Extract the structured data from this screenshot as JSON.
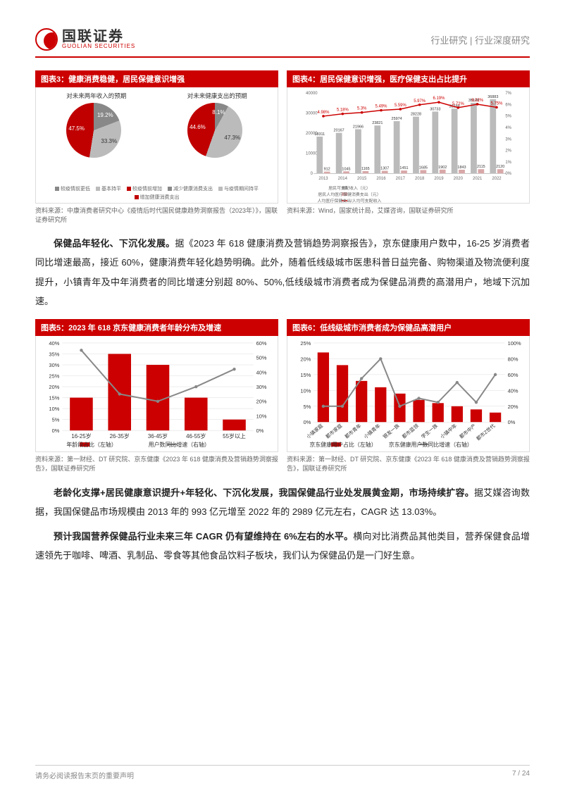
{
  "header": {
    "logo_cn": "国联证券",
    "logo_en": "GUOLIAN SECURITIES",
    "category": "行业研究 | 行业深度研究"
  },
  "fig3": {
    "title": "图表3：健康消费稳健，居民保健意识增强",
    "pie1": {
      "label": "对未来两年收入的预期",
      "slices": [
        {
          "color": "#888888",
          "pct": 19.2,
          "label": "19.2%"
        },
        {
          "color": "#bbbbbb",
          "pct": 33.3,
          "label": "33.3%"
        },
        {
          "color": "#c00000",
          "pct": 47.5,
          "label": "47.5%"
        }
      ]
    },
    "pie2": {
      "label": "对未来健康支出的预期",
      "slices": [
        {
          "color": "#888888",
          "pct": 8.1,
          "label": "8.1%"
        },
        {
          "color": "#bbbbbb",
          "pct": 47.3,
          "label": "47.3%"
        },
        {
          "color": "#c00000",
          "pct": 44.6,
          "label": "44.6%"
        }
      ]
    },
    "legend": [
      {
        "color": "#888888",
        "text": "较疫情前更低"
      },
      {
        "color": "#bbbbbb",
        "text": "基本持平"
      },
      {
        "color": "#c00000",
        "text": "较疫情前增加"
      },
      {
        "color": "#888888",
        "text": "减少健康消费支出"
      },
      {
        "color": "#bbbbbb",
        "text": "与疫情期间持平"
      },
      {
        "color": "#c00000",
        "text": "增加健康消费支出"
      }
    ],
    "source": "资料来源：中康消费者研究中心《疫情后时代国民健康趋势洞察报告（2023年）》，国联证券研究所"
  },
  "fig4": {
    "title": "图表4：居民保健意识增强，医疗保健支出占比提升",
    "years": [
      "2013",
      "2014",
      "2015",
      "2016",
      "2017",
      "2018",
      "2019",
      "2020",
      "2021",
      "2022"
    ],
    "bar1": [
      18311,
      20167,
      21966,
      23821,
      25974,
      28228,
      30733,
      32189,
      35128,
      36883
    ],
    "bar2": [
      912,
      1045,
      1165,
      1307,
      1451,
      1685,
      1902,
      1843,
      2115,
      2120
    ],
    "line_pct": [
      4.98,
      5.18,
      5.3,
      5.49,
      5.59,
      5.97,
      6.19,
      5.72,
      6.02,
      5.75
    ],
    "y1_max": 40000,
    "y1_step": 10000,
    "y2_max": 7,
    "y2_step": 1,
    "bar1_color": "#bbbbbb",
    "bar2_color": "#d8a8a8",
    "line_color": "#c00000",
    "legend": [
      {
        "type": "box",
        "color": "#bbbbbb",
        "text": "居民可支配收入（元）"
      },
      {
        "type": "box",
        "color": "#d8a8a8",
        "text": "居民人均医疗保健消费支出（元）"
      },
      {
        "type": "line",
        "color": "#c00000",
        "text": "人均医疗保健支出/人均可支配收入"
      }
    ],
    "source": "资料来源：Wind，国家统计局，艾媒咨询，国联证券研究所"
  },
  "para1": {
    "lead": "保健品年轻化、下沉化发展。",
    "text": "据《2023 年 618 健康消费及营销趋势洞察报告》，京东健康用户数中，16-25 岁消费者同比增速最高，接近 60%，健康消费年轻化趋势明确。此外，随着低线级城市医患科普日益完备、购物渠道及物流便利度提升，小镇青年及中年消费者的同比增速分别超 80%、50%,低线级城市消费者成为保健品消费的高潜用户，地域下沉加速。"
  },
  "fig5": {
    "title": "图表5：2023 年 618 京东健康消费者年龄分布及增速",
    "categories": [
      "16-25岁",
      "26-35岁",
      "36-45岁",
      "46-55岁",
      "55岁以上"
    ],
    "bar_values": [
      15,
      35,
      30,
      15,
      5
    ],
    "line_values": [
      55,
      25,
      20,
      30,
      42
    ],
    "y1_max": 40,
    "y1_step": 5,
    "y2_max": 60,
    "y2_step": 10,
    "bar_color": "#c00000",
    "line_color": "#888888",
    "legend": [
      {
        "type": "box",
        "color": "#c00000",
        "text": "年龄段占比（左轴）"
      },
      {
        "type": "line",
        "color": "#888888",
        "text": "用户数同比增速（右轴）"
      }
    ],
    "source": "资料来源：第一财经、DT 研究院、京东健康《2023 年 618 健康消费及营销趋势洞察报告》，国联证券研究所"
  },
  "fig6": {
    "title": "图表6：低线级城市消费者成为保健品高潜用户",
    "categories": [
      "小镇家庭",
      "都市家庭",
      "都市青年",
      "小镇青年",
      "银发一族",
      "都市蓝领",
      "学生一族",
      "小镇中年",
      "都市中产",
      "都市Z世代"
    ],
    "bar_values": [
      22,
      18,
      13,
      11,
      9,
      7,
      6,
      5,
      4,
      3
    ],
    "line_values": [
      20,
      20,
      55,
      80,
      20,
      30,
      25,
      50,
      25,
      60
    ],
    "y1_max": 25,
    "y1_step": 5,
    "y2_max": 100,
    "y2_step": 20,
    "bar_color": "#c00000",
    "line_color": "#888888",
    "legend": [
      {
        "type": "box",
        "color": "#c00000",
        "text": "京东健康用户占比（左轴）"
      },
      {
        "type": "line",
        "color": "#888888",
        "text": "京东健康用户数同比增速（右轴）"
      }
    ],
    "source": "资料来源：第一财经、DT 研究院、京东健康《2023 年 618 健康消费及营销趋势洞察报告》，国联证券研究所"
  },
  "para2": {
    "lead": "老龄化支撑+居民健康意识提升+年轻化、下沉化发展，我国保健品行业处发展黄金期，市场持续扩容。",
    "text": "据艾媒咨询数据，我国保健品市场规模由 2013 年的 993 亿元增至 2022 年的 2989 亿元左右，CAGR 达 13.03%。"
  },
  "para3": {
    "lead": "预计我国营养保健品行业未来三年 CAGR 仍有望维持在 6%左右的水平。",
    "text": "横向对比消费品其他类目，营养保健食品增速领先于咖啡、啤酒、乳制品、零食等其他食品饮料子板块，我们认为保健品仍是一门好生意。"
  },
  "footer": {
    "left": "请务必阅读报告末页的重要声明",
    "right": "7 / 24"
  }
}
